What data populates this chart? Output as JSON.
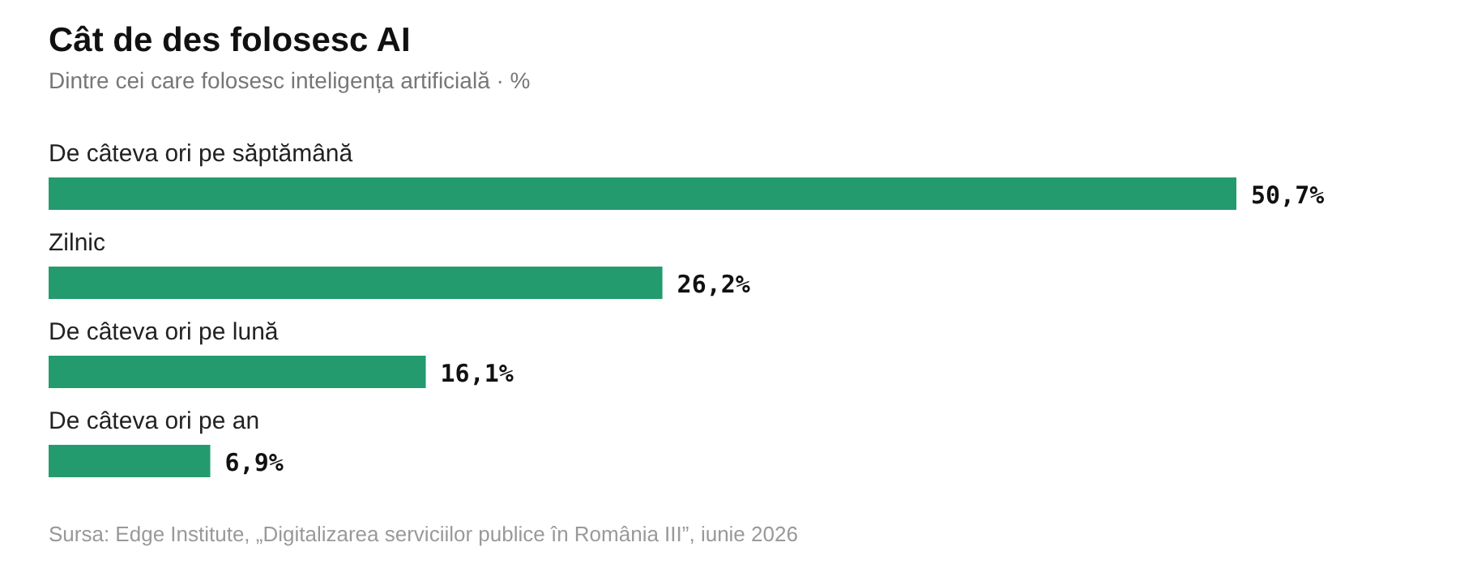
{
  "chart_data": {
    "type": "bar",
    "orientation": "horizontal",
    "title": "Cât de des folosesc AI",
    "subtitle": "Dintre cei care folosesc inteligența artificială · %",
    "categories": [
      "De câteva ori pe săptămână",
      "Zilnic",
      "De câteva ori pe lună",
      "De câteva ori pe an"
    ],
    "values": [
      50.7,
      26.2,
      16.1,
      6.9
    ],
    "color": "#239b6e",
    "value_labels": [
      "50,7%",
      "26,2%",
      "16,1%",
      "6,9%"
    ],
    "annotations": [
      "Sursa: Edge Institute, „Digitalizarea serviciilor publice în România III”, iunie 2026"
    ]
  }
}
